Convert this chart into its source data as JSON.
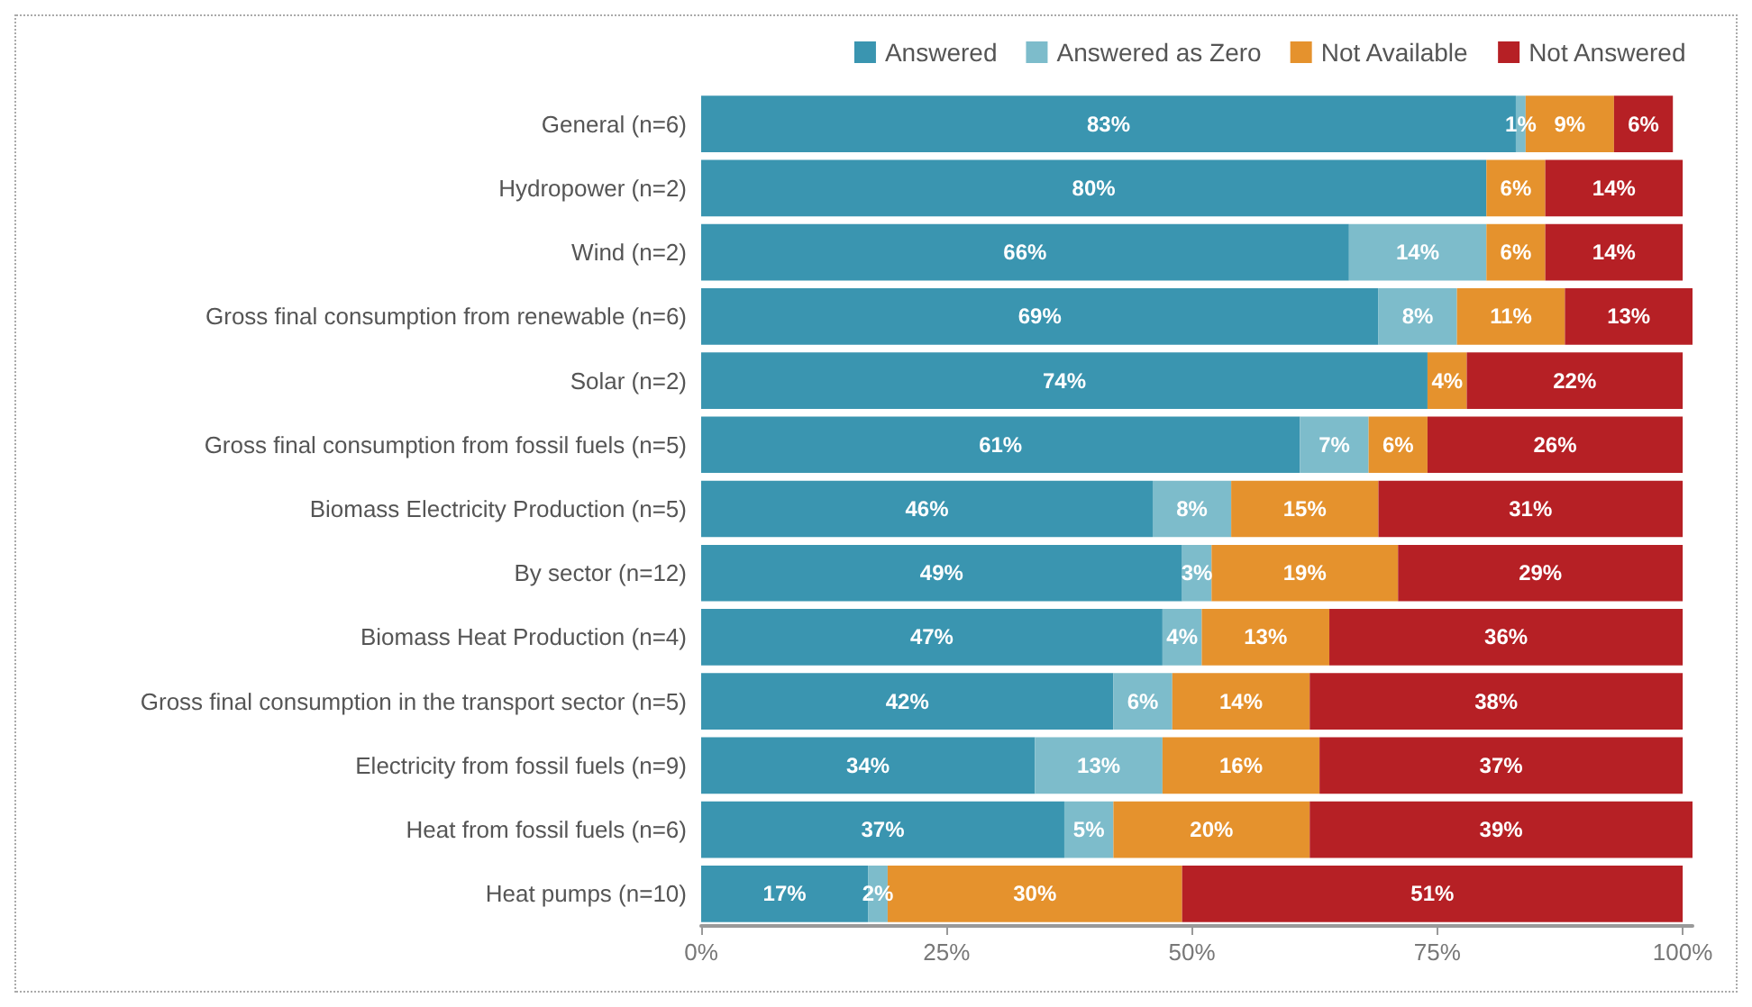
{
  "chart_data": {
    "type": "bar",
    "orientation": "horizontal",
    "stacked": true,
    "categories": [
      "General (n=6)",
      "Hydropower (n=2)",
      "Wind (n=2)",
      "Gross final consumption from renewable (n=6)",
      "Solar (n=2)",
      "Gross final consumption from fossil fuels (n=5)",
      "Biomass Electricity Production (n=5)",
      "By sector (n=12)",
      "Biomass Heat Production (n=4)",
      "Gross final consumption in the transport sector (n=5)",
      "Electricity from fossil fuels (n=9)",
      "Heat from fossil fuels (n=6)",
      "Heat pumps (n=10)"
    ],
    "series": [
      {
        "name": "Answered",
        "color": "#3a95b0",
        "values": [
          83,
          80,
          66,
          69,
          74,
          61,
          46,
          49,
          47,
          42,
          34,
          37,
          17
        ],
        "value_labels": [
          "83%",
          "80%",
          "66%",
          "69%",
          "74%",
          "61%",
          "46%",
          "49%",
          "47%",
          "42%",
          "34%",
          "37%",
          "17%"
        ]
      },
      {
        "name": "Answered as Zero",
        "color": "#7dbccb",
        "values": [
          1,
          null,
          14,
          8,
          null,
          7,
          8,
          3,
          4,
          6,
          13,
          5,
          2
        ],
        "value_labels": [
          "1%",
          null,
          "14%",
          "8%",
          null,
          "7%",
          "8%",
          "3%",
          "4%",
          "6%",
          "13%",
          "5%",
          "2%"
        ]
      },
      {
        "name": "Not Available",
        "color": "#e5922d",
        "values": [
          9,
          6,
          6,
          11,
          4,
          6,
          15,
          19,
          13,
          14,
          16,
          20,
          30
        ],
        "value_labels": [
          "9%",
          "6%",
          "6%",
          "11%",
          "4%",
          "6%",
          "15%",
          "19%",
          "13%",
          "14%",
          "16%",
          "20%",
          "30%"
        ]
      },
      {
        "name": "Not Answered",
        "color": "#b62025",
        "values": [
          6,
          14,
          14,
          13,
          22,
          26,
          31,
          29,
          36,
          38,
          37,
          39,
          51
        ],
        "value_labels": [
          "6%",
          "14%",
          "14%",
          "13%",
          "22%",
          "26%",
          "31%",
          "29%",
          "36%",
          "38%",
          "37%",
          "39%",
          "51%"
        ]
      }
    ],
    "xlim": [
      0,
      101
    ],
    "xticks": [
      {
        "value": 0,
        "label": "0%"
      },
      {
        "value": 25,
        "label": "25%"
      },
      {
        "value": 50,
        "label": "50%"
      },
      {
        "value": 75,
        "label": "75%"
      },
      {
        "value": 100,
        "label": "100%"
      }
    ],
    "grid": false,
    "legend": "top right"
  }
}
